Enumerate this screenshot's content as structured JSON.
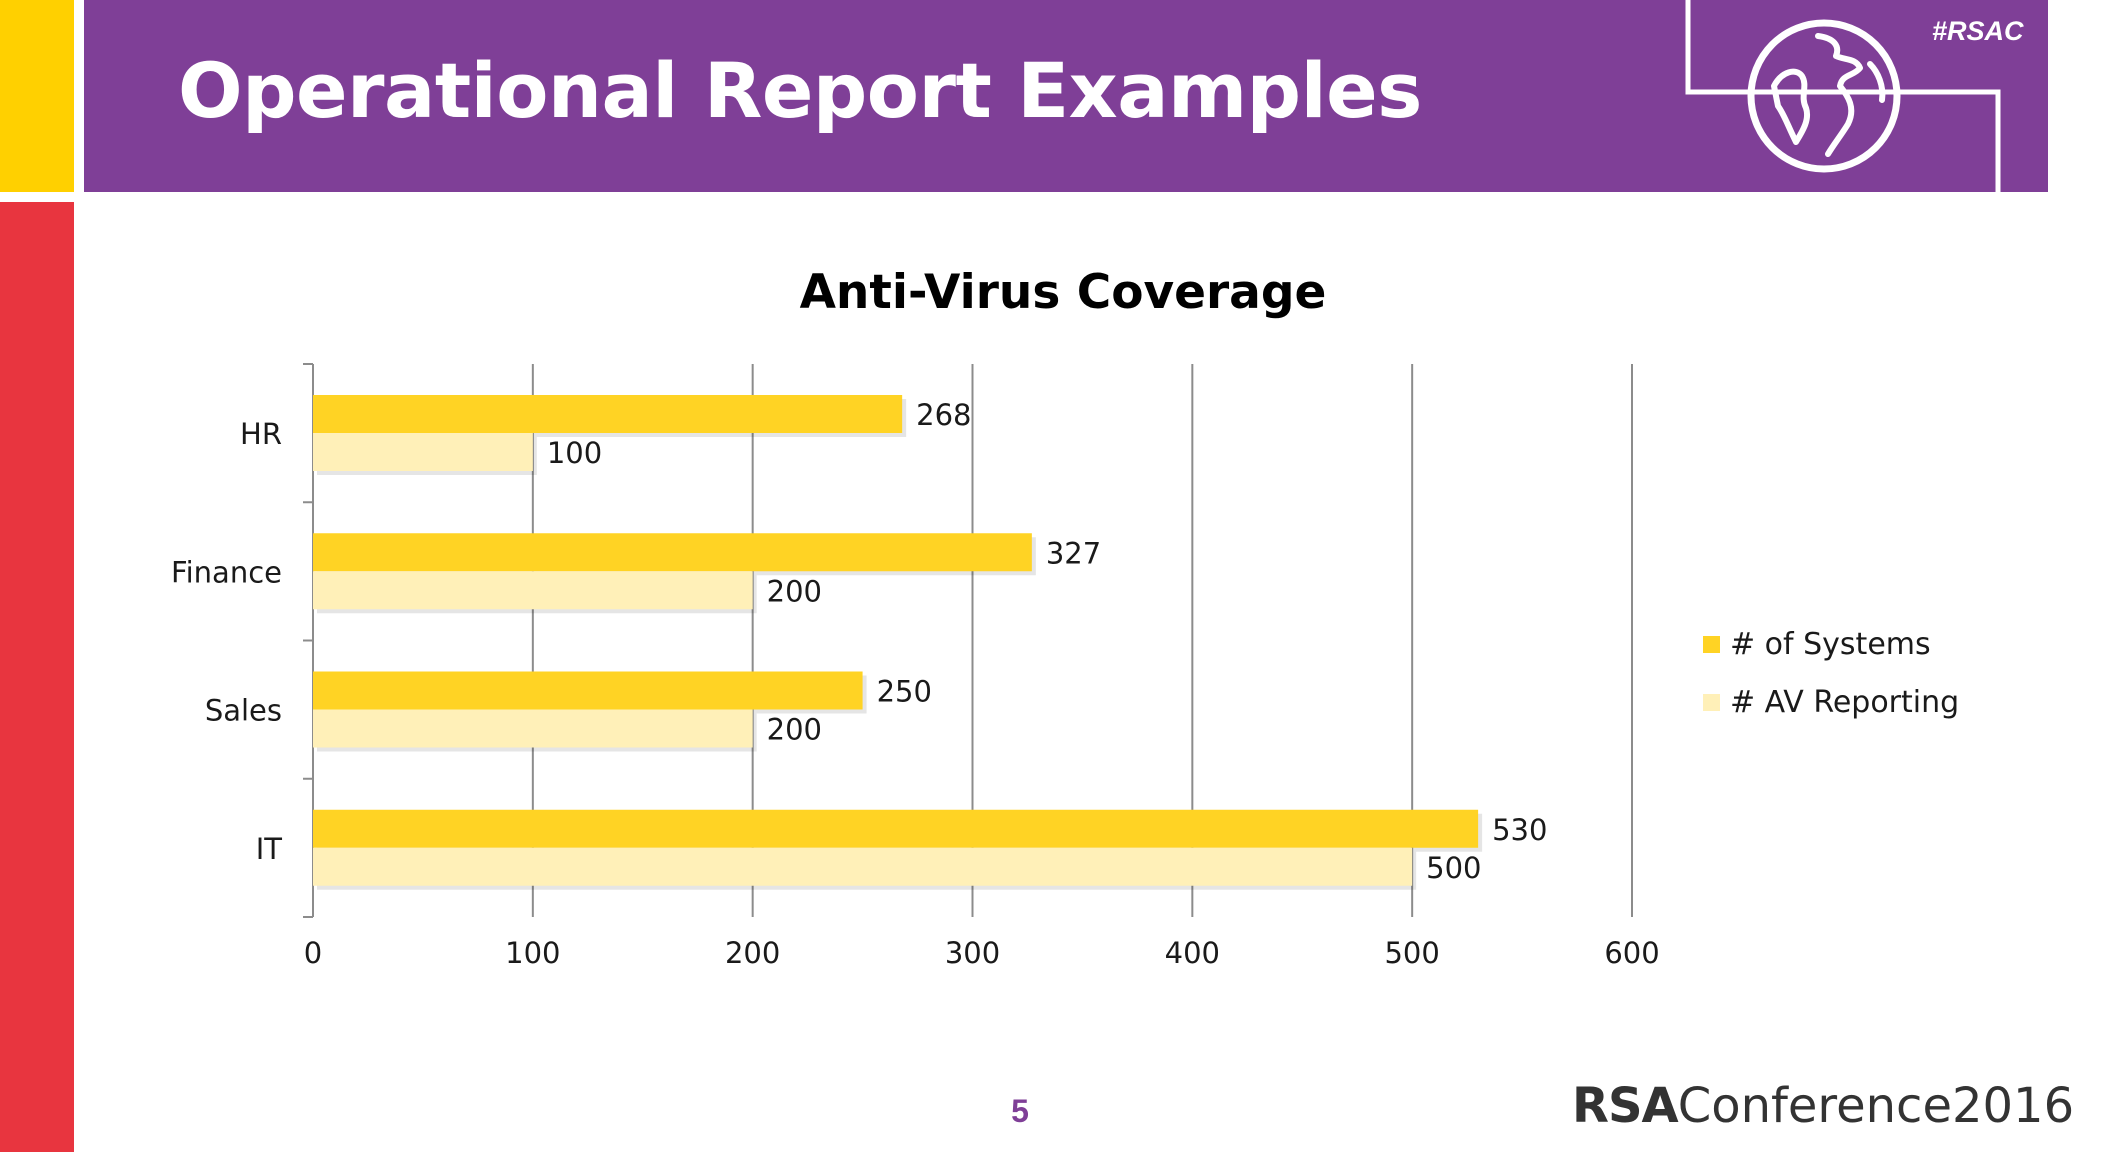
{
  "slide": {
    "title": "Operational Report Examples",
    "hashtag": "#RSAC",
    "page_number": "5",
    "footer_brand": "RSA",
    "footer_event": "Conference2016"
  },
  "colors": {
    "header_purple": "#7f3f97",
    "accent_yellow": "#ffd000",
    "accent_red": "#e8353f",
    "series_systems": "#ffd324",
    "series_av": "#fff0b8"
  },
  "icons": {
    "globe": "globe-icon"
  },
  "chart_data": {
    "type": "bar",
    "orientation": "horizontal",
    "title": "Anti-Virus Coverage",
    "xlabel": "",
    "ylabel": "",
    "categories": [
      "HR",
      "Finance",
      "Sales",
      "IT"
    ],
    "series": [
      {
        "name": "# of Systems",
        "values": [
          268,
          327,
          250,
          530
        ],
        "color": "#ffd324"
      },
      {
        "name": "# AV Reporting",
        "values": [
          100,
          200,
          200,
          500
        ],
        "color": "#fff0b8"
      }
    ],
    "xlim": [
      0,
      600
    ],
    "xticks": [
      "0",
      "100",
      "200",
      "300",
      "400",
      "500",
      "600"
    ],
    "grid": "vertical",
    "legend": "right",
    "data_labels": true
  }
}
